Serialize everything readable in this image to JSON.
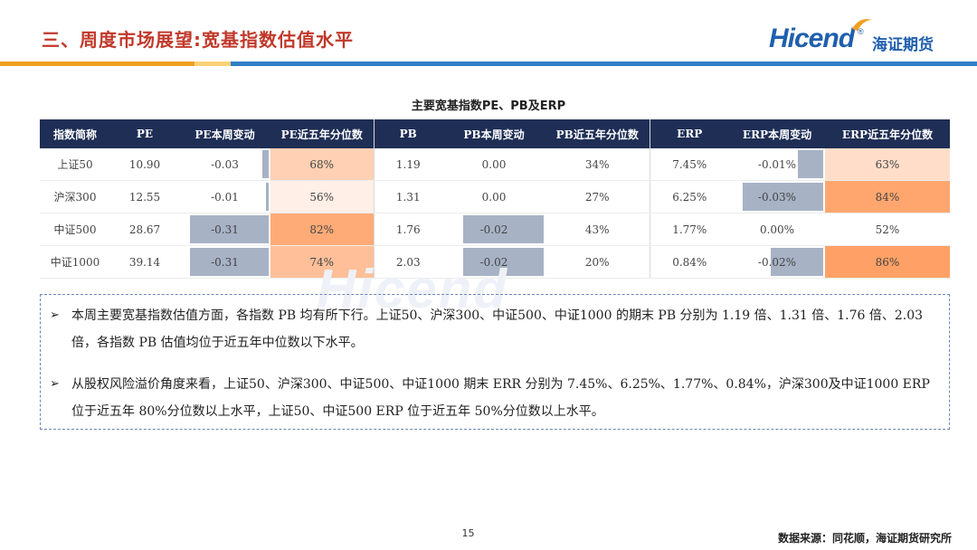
{
  "header": {
    "title": "三、周度市场展望:宽基指数估值水平"
  },
  "logo": {
    "brand": "Hicend",
    "reg_mark": "®",
    "company": "海证期货"
  },
  "colors": {
    "title_red": "#c0392b",
    "navy": "#1e2e55",
    "brand_blue": "#1f5fae",
    "rule_orange": "#f0a020",
    "rule_blue": "#2f7fc8",
    "bar_gray": "#a7b2c5"
  },
  "table": {
    "title": "主要宽基指数PE、PB及ERP",
    "headers": [
      "指数简称",
      "PE",
      "PE本周变动",
      "PE近五年分位数",
      "PB",
      "PB本周变动",
      "PB近五年分位数",
      "ERP",
      "ERP本周变动",
      "ERP近五年分位数"
    ],
    "rows": [
      {
        "name": "上证50",
        "pe": "10.90",
        "pe_chg": "-0.03",
        "pe_pct": "68%",
        "pb": "1.19",
        "pb_chg": "0.00",
        "pb_pct": "34%",
        "erp": "7.45%",
        "erp_chg": "-0.01%",
        "erp_pct": "63%"
      },
      {
        "name": "沪深300",
        "pe": "12.55",
        "pe_chg": "-0.01",
        "pe_pct": "56%",
        "pb": "1.31",
        "pb_chg": "0.00",
        "pb_pct": "27%",
        "erp": "6.25%",
        "erp_chg": "-0.03%",
        "erp_pct": "84%"
      },
      {
        "name": "中证500",
        "pe": "28.67",
        "pe_chg": "-0.31",
        "pe_pct": "82%",
        "pb": "1.76",
        "pb_chg": "-0.02",
        "pb_pct": "43%",
        "erp": "1.77%",
        "erp_chg": "0.00%",
        "erp_pct": "52%"
      },
      {
        "name": "中证1000",
        "pe": "39.14",
        "pe_chg": "-0.31",
        "pe_pct": "74%",
        "pb": "2.03",
        "pb_chg": "-0.02",
        "pb_pct": "20%",
        "erp": "0.84%",
        "erp_chg": "-0.02%",
        "erp_pct": "86%"
      }
    ]
  },
  "notes": [
    {
      "bullet": "➢",
      "text": "本周主要宽基指数估值方面，各指数 PB 均有所下行。上证50、沪深300、中证500、中证1000 的期末 PB 分别为 1.19 倍、1.31 倍、1.76 倍、2.03 倍，各指数 PB 估值均位于近五年中位数以下水平。"
    },
    {
      "bullet": "➢",
      "text": "从股权风险溢价角度来看，上证50、沪深300、中证500、中证1000 期末 ERR 分别为 7.45%、6.25%、1.77%、0.84%，沪深300及中证1000 ERP 位于近五年 80%分位数以上水平，上证50、中证500 ERP 位于近五年 50%分位数以上水平。"
    }
  ],
  "footer": {
    "page": "15",
    "source": "数据来源：同花顺，海证期货研究所"
  }
}
